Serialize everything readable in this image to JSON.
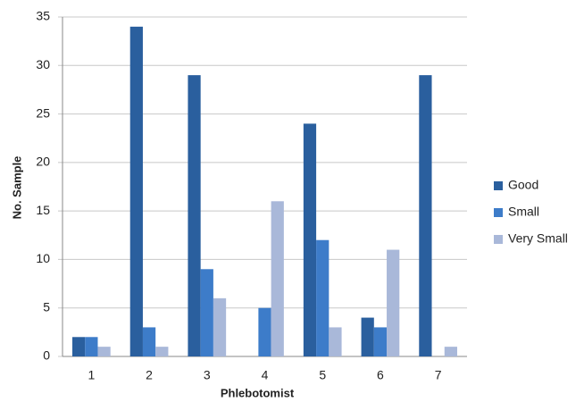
{
  "chart_data": {
    "type": "bar",
    "x_label": "Phlebotomist",
    "y_label": "No. Sample",
    "categories": [
      "1",
      "2",
      "3",
      "4",
      "5",
      "6",
      "7"
    ],
    "series": [
      {
        "name": "Good",
        "color": "#2a5f9e",
        "values": [
          2,
          34,
          29,
          0,
          24,
          4,
          29
        ]
      },
      {
        "name": "Small",
        "color": "#3d7cc9",
        "values": [
          2,
          3,
          9,
          5,
          12,
          3,
          0
        ]
      },
      {
        "name": "Very Small",
        "color": "#a9b8d9",
        "values": [
          1,
          1,
          6,
          16,
          3,
          11,
          1
        ]
      }
    ],
    "ylim": [
      0,
      35
    ],
    "yticks": [
      0,
      5,
      10,
      15,
      20,
      25,
      30,
      35
    ],
    "grid": true,
    "legend": "right"
  }
}
